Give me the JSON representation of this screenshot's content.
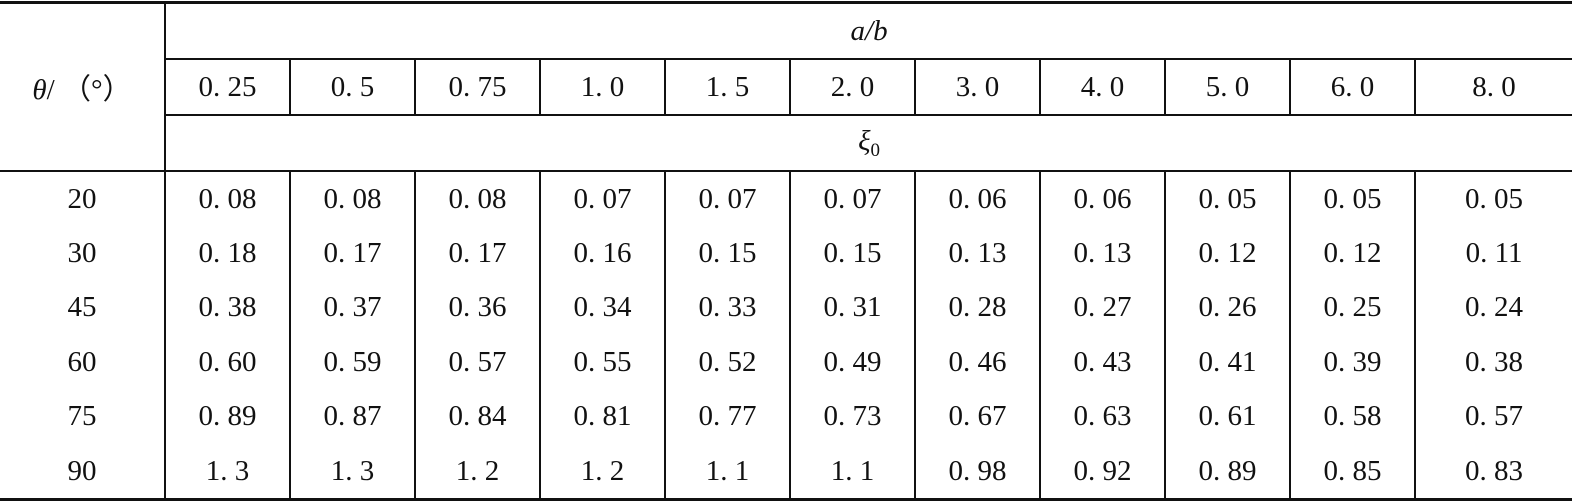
{
  "header": {
    "theta_label_symbol": "θ",
    "theta_label_unit": "/ （°）",
    "group_label_a": "a",
    "group_label_slash": "/",
    "group_label_b": "b",
    "xi_symbol": "ξ",
    "xi_subscript": "0",
    "columns": [
      "0. 25",
      "0. 5",
      "0. 75",
      "1. 0",
      "1. 5",
      "2. 0",
      "3. 0",
      "4. 0",
      "5. 0",
      "6. 0",
      "8. 0"
    ]
  },
  "rows": [
    {
      "theta": "20",
      "values": [
        "0. 08",
        "0. 08",
        "0. 08",
        "0. 07",
        "0. 07",
        "0. 07",
        "0. 06",
        "0. 06",
        "0. 05",
        "0. 05",
        "0. 05"
      ]
    },
    {
      "theta": "30",
      "values": [
        "0. 18",
        "0. 17",
        "0. 17",
        "0. 16",
        "0. 15",
        "0. 15",
        "0. 13",
        "0. 13",
        "0. 12",
        "0. 12",
        "0. 11"
      ]
    },
    {
      "theta": "45",
      "values": [
        "0. 38",
        "0. 37",
        "0. 36",
        "0. 34",
        "0. 33",
        "0. 31",
        "0. 28",
        "0. 27",
        "0. 26",
        "0. 25",
        "0. 24"
      ]
    },
    {
      "theta": "60",
      "values": [
        "0. 60",
        "0. 59",
        "0. 57",
        "0. 55",
        "0. 52",
        "0. 49",
        "0. 46",
        "0. 43",
        "0. 41",
        "0. 39",
        "0. 38"
      ]
    },
    {
      "theta": "75",
      "values": [
        "0. 89",
        "0. 87",
        "0. 84",
        "0. 81",
        "0. 77",
        "0. 73",
        "0. 67",
        "0. 63",
        "0. 61",
        "0. 58",
        "0. 57"
      ]
    },
    {
      "theta": "90",
      "values": [
        "1. 3",
        "1. 3",
        "1. 2",
        "1. 2",
        "1. 1",
        "1. 1",
        "0. 98",
        "0. 92",
        "0. 89",
        "0. 85",
        "0. 83"
      ]
    }
  ]
}
